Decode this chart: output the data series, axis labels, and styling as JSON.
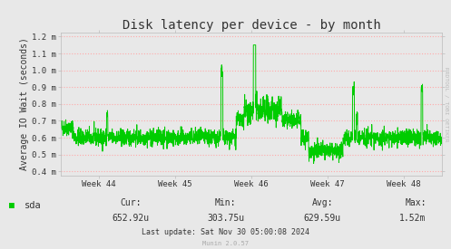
{
  "title": "Disk latency per device - by month",
  "ylabel": "Average IO Wait (seconds)",
  "background_color": "#e8e8e8",
  "plot_bg_color": "#e8e8e8",
  "line_color": "#00cc00",
  "grid_color": "#ffaaaa",
  "ytick_labels": [
    "0.4 m",
    "0.5 m",
    "0.6 m",
    "0.7 m",
    "0.8 m",
    "0.9 m",
    "1.0 m",
    "1.1 m",
    "1.2 m"
  ],
  "ytick_vals": [
    0.0004,
    0.0005,
    0.0006,
    0.0007,
    0.0008,
    0.0009,
    0.001,
    0.0011,
    0.0012
  ],
  "week_labels": [
    "Week 44",
    "Week 45",
    "Week 46",
    "Week 47",
    "Week 48"
  ],
  "legend_label": "sda",
  "legend_color": "#00cc00",
  "cur": "652.92u",
  "min": "303.75u",
  "avg": "629.59u",
  "max": "1.52m",
  "last_update": "Last update: Sat Nov 30 05:00:08 2024",
  "munin_label": "Munin 2.0.57",
  "rrdtool_label": "RRDTOOL / TOBI OETIKER",
  "title_fontsize": 10,
  "ylabel_fontsize": 7,
  "tick_fontsize": 6.5,
  "stats_fontsize": 7,
  "legend_fontsize": 7.5
}
